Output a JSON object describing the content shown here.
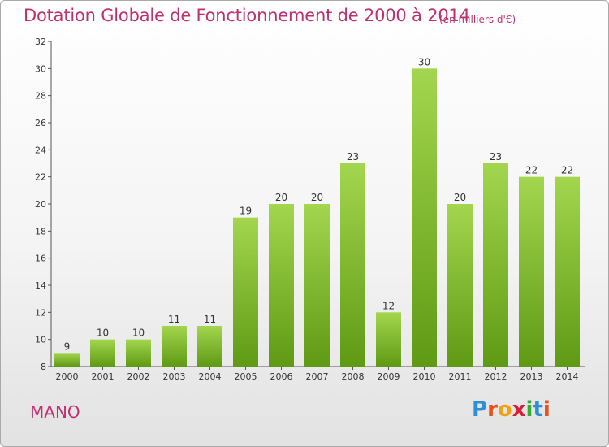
{
  "chart_data": {
    "type": "bar",
    "title": "Dotation Globale de Fonctionnement de 2000 à 2014",
    "subtitle": "(en milliers d'€)",
    "categories": [
      "2000",
      "2001",
      "2002",
      "2003",
      "2004",
      "2005",
      "2006",
      "2007",
      "2008",
      "2009",
      "2010",
      "2011",
      "2012",
      "2013",
      "2014"
    ],
    "values": [
      9,
      10,
      10,
      11,
      11,
      19,
      20,
      20,
      23,
      12,
      30,
      20,
      23,
      22,
      22
    ],
    "ylim": [
      8,
      32
    ],
    "yticks": [
      8,
      10,
      12,
      14,
      16,
      18,
      20,
      22,
      24,
      26,
      28,
      30,
      32
    ],
    "grid": false,
    "colors": {
      "bar_top": "#9fd34a",
      "bar_bottom": "#5f9a14",
      "text": "#c0306e"
    }
  },
  "footer": {
    "commune": "MANO",
    "logo_text": "Proxiti"
  }
}
